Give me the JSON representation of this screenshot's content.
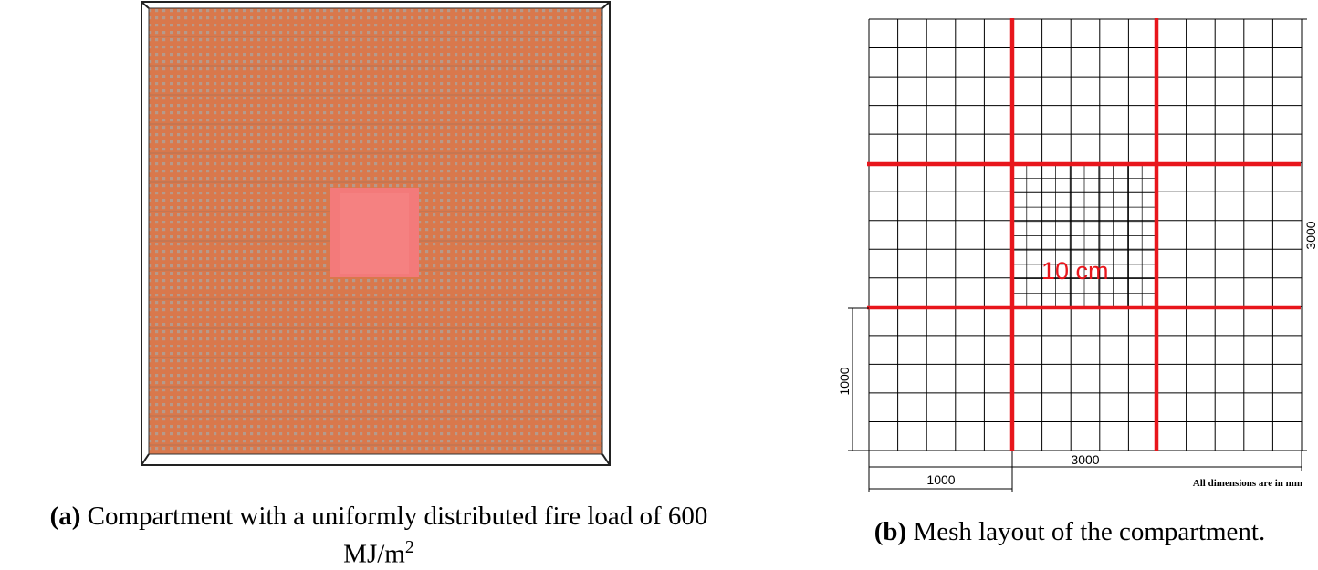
{
  "panel_a": {
    "label": "(a)",
    "caption": "Compartment with a uniformly distributed fire load of 600",
    "caption_unit": "MJ/m",
    "caption_unit_exp": "2",
    "colors": {
      "fire_load_fill": "#d9784c",
      "grid_lines": "#9a9a9a",
      "burner_fill": "#f37a7a",
      "frame": "#222222"
    }
  },
  "panel_b": {
    "label": "(b)",
    "caption": "Mesh layout of the compartment.",
    "mesh_label": "10 cm",
    "dim_bottom_total": "3000",
    "dim_right_total": "3000",
    "dim_bottom_part": "1000",
    "dim_left_part": "1000",
    "units_note": "All dimensions are in mm",
    "colors": {
      "mesh_boundary": "#e8161c",
      "mesh_lines": "#000000",
      "mesh_label": "#e8161c"
    }
  }
}
